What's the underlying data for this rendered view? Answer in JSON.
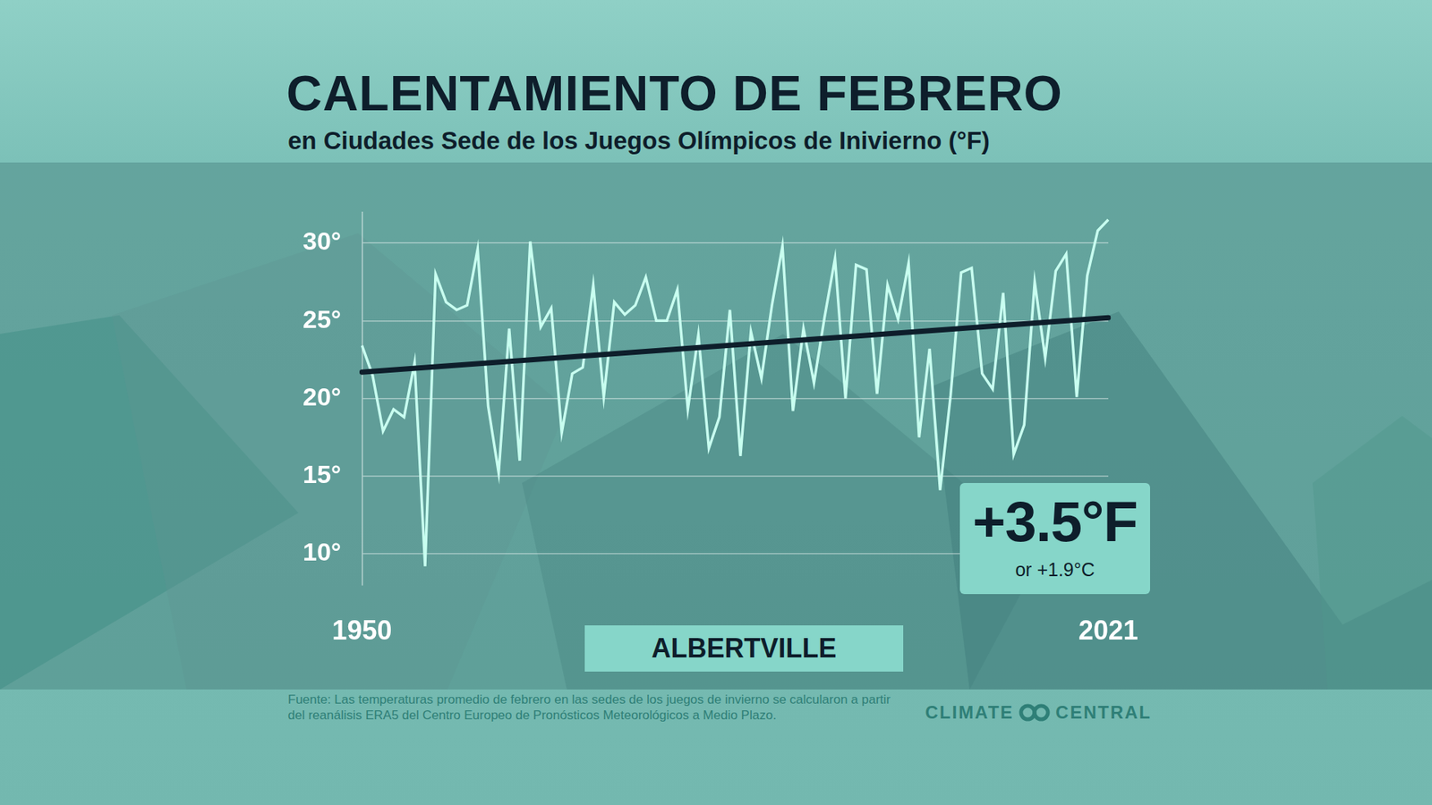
{
  "chart_data": {
    "type": "line",
    "title": "CALENTAMIENTO DE FEBRERO",
    "subtitle": "en Ciudades Sede de los Juegos Olímpicos de Inivierno (°F)",
    "categories": [
      "1950",
      null,
      null,
      null,
      null,
      null,
      null,
      null,
      null,
      null,
      null,
      null,
      null,
      null,
      null,
      null,
      null,
      null,
      null,
      null,
      null,
      null,
      null,
      null,
      null,
      null,
      null,
      null,
      null,
      null,
      null,
      null,
      null,
      null,
      null,
      null,
      null,
      null,
      null,
      null,
      null,
      null,
      null,
      null,
      null,
      null,
      null,
      null,
      null,
      null,
      null,
      null,
      null,
      null,
      null,
      null,
      null,
      null,
      null,
      null,
      null,
      null,
      null,
      null,
      null,
      null,
      null,
      null,
      null,
      null,
      null,
      "2021"
    ],
    "values": [
      23.4,
      21.5,
      17.9,
      19.3,
      18.8,
      22.3,
      9.2,
      28.0,
      26.2,
      25.7,
      26.0,
      29.6,
      19.5,
      15.2,
      24.5,
      16.0,
      30.1,
      24.6,
      25.8,
      17.8,
      21.6,
      22.0,
      27.3,
      20.1,
      26.2,
      25.4,
      26.0,
      27.8,
      25.0,
      25.0,
      27.0,
      19.3,
      24.1,
      16.8,
      18.8,
      25.7,
      16.3,
      24.3,
      21.3,
      26.0,
      29.8,
      19.2,
      24.5,
      21.0,
      25.2,
      29.0,
      20.0,
      28.6,
      28.3,
      20.3,
      27.3,
      25.1,
      28.7,
      17.5,
      23.2,
      14.1,
      20.2,
      28.1,
      28.4,
      21.6,
      20.6,
      26.8,
      16.4,
      18.3,
      27.5,
      22.6,
      28.2,
      29.3,
      20.1,
      27.9,
      30.8,
      31.5
    ],
    "color": "#c8fff0",
    "trend_line": {
      "values": [
        21.7,
        25.2
      ],
      "color": "#0e1e2b"
    },
    "ylim": [
      8,
      32
    ],
    "yticks": [
      {
        "value": 10,
        "label": "10°"
      },
      {
        "value": 15,
        "label": "15°"
      },
      {
        "value": 20,
        "label": "20°"
      },
      {
        "value": 25,
        "label": "25°"
      },
      {
        "value": 30,
        "label": "30°"
      }
    ],
    "grid": true,
    "annotation": {
      "text": "+3.5°F",
      "subtext": "or +1.9°C"
    },
    "place_label": "ALBERTVILLE",
    "source": "Fuente: Las temperaturas promedio de febrero en las sedes de los juegos de invierno se calcularon a partir del reanálisis ERA5 del Centro Europeo de Pronósticos Meteorológicos a Medio Plazo.",
    "logo": "CLIMATE CENTRAL"
  }
}
